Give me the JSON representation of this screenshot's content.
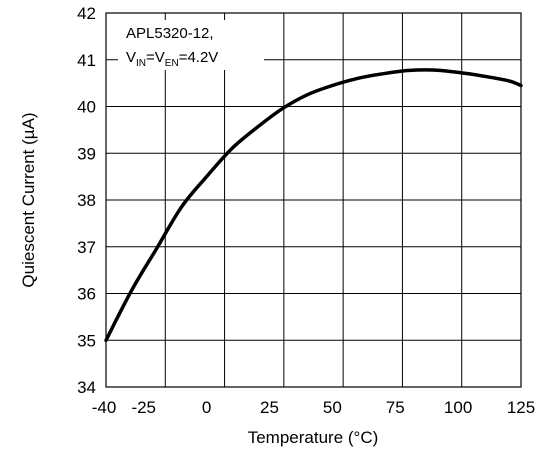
{
  "chart_data": {
    "type": "line",
    "title": "",
    "xlabel": "Temperature (°C)",
    "ylabel": "Quiescent Current (µA)",
    "xlim": [
      -40,
      125
    ],
    "ylim": [
      34,
      42
    ],
    "x_ticks": [
      -40,
      -25,
      0,
      25,
      50,
      75,
      100,
      125
    ],
    "x_tick_labels": [
      "-40",
      "-25",
      "0",
      "25",
      "50",
      "75",
      "100",
      "125"
    ],
    "y_ticks": [
      34,
      35,
      36,
      37,
      38,
      39,
      40,
      41,
      42
    ],
    "y_tick_labels": [
      "34",
      "35",
      "36",
      "37",
      "38",
      "39",
      "40",
      "41",
      "42"
    ],
    "grid": true,
    "annotation": {
      "line1": "APL5320-12,",
      "v1": "V",
      "sub1": "IN",
      "eq1": "=V",
      "sub2": "EN",
      "tail": "=4.2V"
    },
    "series": [
      {
        "name": "",
        "color": "#000000",
        "x": [
          -40,
          -30,
          -20,
          -10,
          0,
          10,
          20,
          30,
          40,
          50,
          60,
          70,
          80,
          90,
          100,
          110,
          120,
          125
        ],
        "y": [
          35.0,
          36.05,
          36.95,
          37.85,
          38.5,
          39.1,
          39.55,
          39.95,
          40.25,
          40.45,
          40.6,
          40.7,
          40.77,
          40.78,
          40.73,
          40.65,
          40.55,
          40.45
        ]
      }
    ]
  }
}
